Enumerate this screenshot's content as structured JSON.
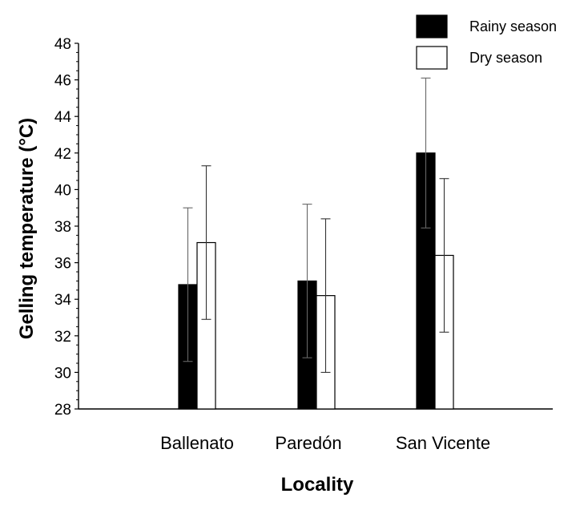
{
  "chart_data": {
    "type": "bar",
    "title": "",
    "xlabel": "Locality",
    "ylabel": "Gelling temperature (°C)",
    "ylim": [
      28,
      48
    ],
    "yticks": [
      28,
      30,
      32,
      34,
      36,
      38,
      40,
      42,
      44,
      46,
      48
    ],
    "categories": [
      "Ballenato",
      "Paredón",
      "San Vicente"
    ],
    "series": [
      {
        "name": "Rainy season",
        "color": "#000000",
        "values": [
          34.8,
          35.0,
          42.0
        ],
        "error": [
          4.2,
          4.2,
          4.1
        ]
      },
      {
        "name": "Dry season",
        "color": "#ffffff",
        "values": [
          37.1,
          34.2,
          36.4
        ],
        "error": [
          4.2,
          4.2,
          4.2
        ]
      }
    ],
    "legend_position": "top-right",
    "grid": false,
    "error_bars": true
  }
}
